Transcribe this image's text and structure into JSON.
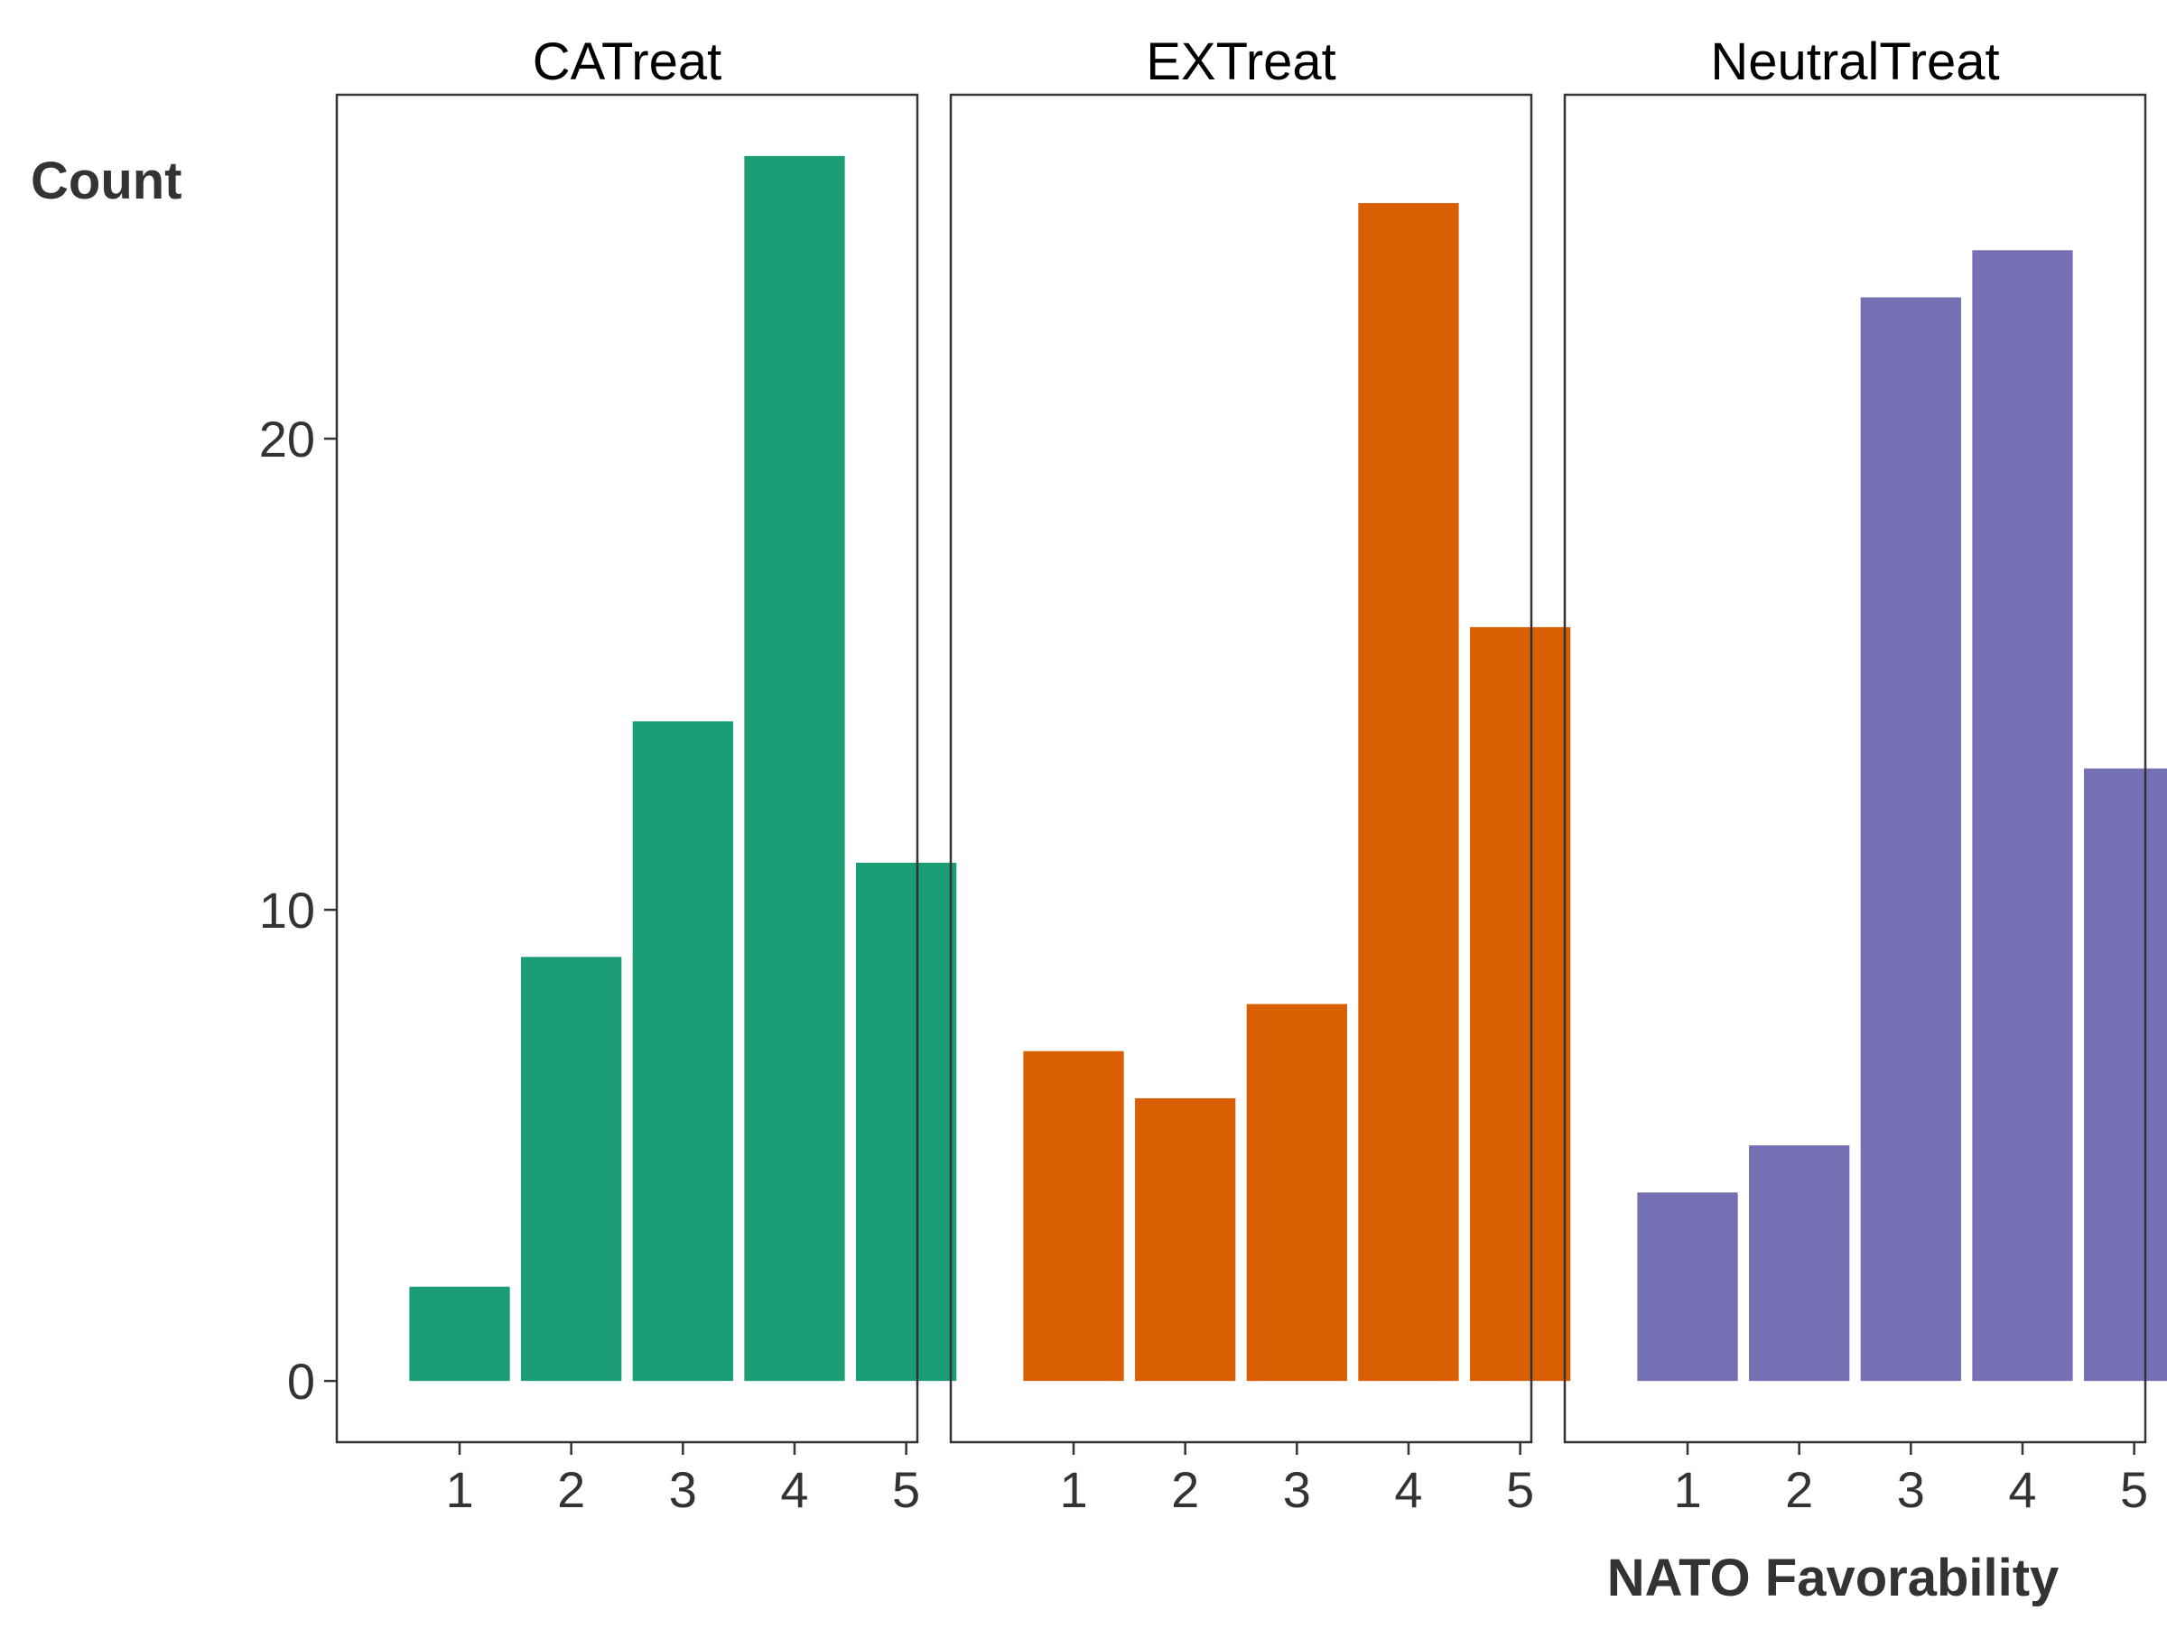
{
  "chart_data": {
    "type": "bar",
    "facet_titles": [
      "CATreat",
      "EXTreat",
      "NeutralTreat"
    ],
    "categories": [
      "1",
      "2",
      "3",
      "4",
      "5"
    ],
    "series": [
      {
        "name": "CATreat",
        "values": [
          2,
          9,
          14,
          26,
          11
        ],
        "color": "#1b9e77"
      },
      {
        "name": "EXTreat",
        "values": [
          7,
          6,
          8,
          25,
          16
        ],
        "color": "#d95f02"
      },
      {
        "name": "NeutralTreat",
        "values": [
          4,
          5,
          23,
          24,
          13
        ],
        "color": "#7570b3"
      }
    ],
    "title": "",
    "xlabel": "NATO Favorability",
    "ylabel": "Count",
    "ylim": [
      -1.3,
      27.3
    ],
    "yticks": [
      0,
      10,
      20
    ],
    "grid": false,
    "legend": "none"
  }
}
